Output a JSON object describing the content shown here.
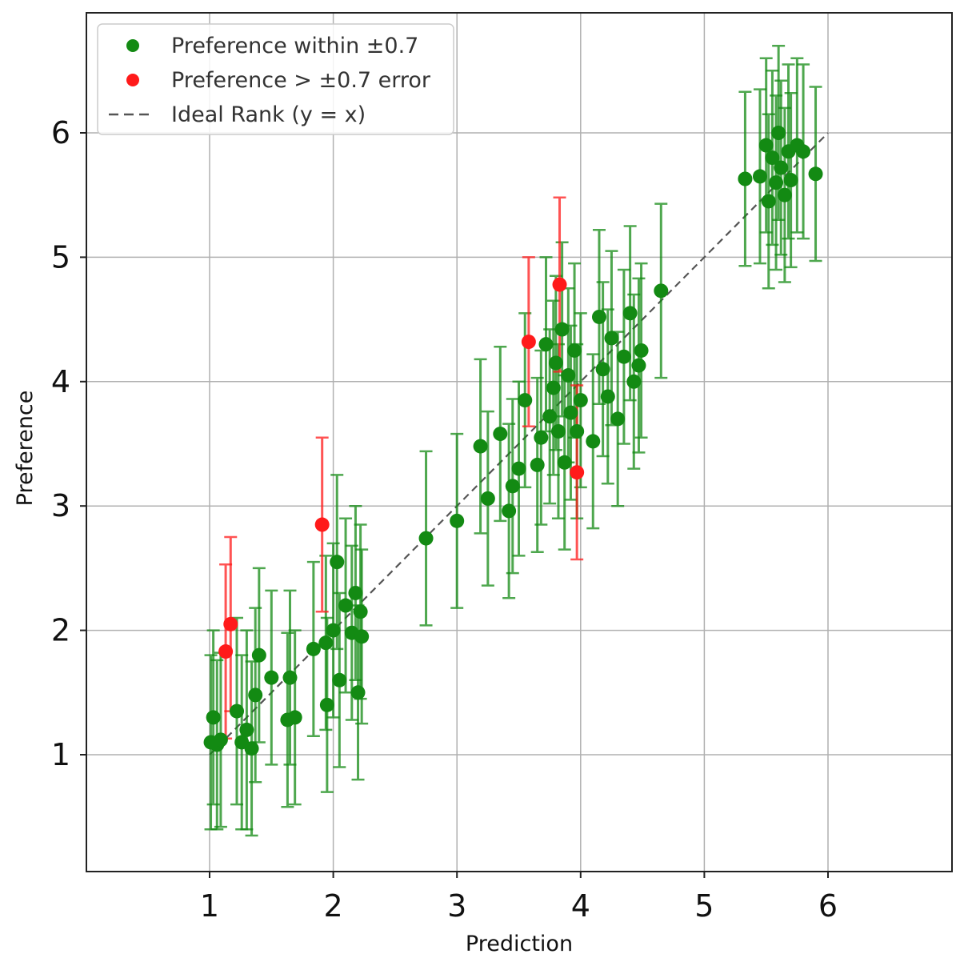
{
  "chart_data": {
    "type": "scatter",
    "title": "",
    "xlabel": "Prediction",
    "ylabel": "Preference",
    "xlim": [
      0,
      7
    ],
    "ylim": [
      0.25,
      7.0
    ],
    "xticks": [
      "1",
      "2",
      "3",
      "4",
      "5",
      "6"
    ],
    "yticks": [
      "1",
      "2",
      "3",
      "4",
      "5",
      "6"
    ],
    "xtick_values": [
      1,
      2,
      3,
      4,
      5,
      6
    ],
    "ytick_values": [
      1,
      2,
      3,
      4,
      5,
      6
    ],
    "grid": true,
    "legend_position": "top-left",
    "series": [
      {
        "name": "Preference within ±0.7",
        "color": "#138a13",
        "marker": "circle",
        "points": [
          [
            1.01,
            1.1,
            0.7
          ],
          [
            1.03,
            1.3,
            0.7
          ],
          [
            1.06,
            1.08,
            0.68
          ],
          [
            1.09,
            1.12,
            0.7
          ],
          [
            1.22,
            1.35,
            0.75
          ],
          [
            1.26,
            1.1,
            0.7
          ],
          [
            1.3,
            1.2,
            0.8
          ],
          [
            1.34,
            1.05,
            0.7
          ],
          [
            1.37,
            1.48,
            0.7
          ],
          [
            1.4,
            1.8,
            0.7
          ],
          [
            1.5,
            1.62,
            0.7
          ],
          [
            1.63,
            1.28,
            0.7
          ],
          [
            1.65,
            1.62,
            0.7
          ],
          [
            1.69,
            1.3,
            0.7
          ],
          [
            1.84,
            1.85,
            0.7
          ],
          [
            1.94,
            1.9,
            0.7
          ],
          [
            1.95,
            1.4,
            0.7
          ],
          [
            2.0,
            2.0,
            0.7
          ],
          [
            2.03,
            2.55,
            0.7
          ],
          [
            2.05,
            1.6,
            0.7
          ],
          [
            2.1,
            2.2,
            0.7
          ],
          [
            2.15,
            1.98,
            0.7
          ],
          [
            2.18,
            2.3,
            0.7
          ],
          [
            2.2,
            1.5,
            0.7
          ],
          [
            2.22,
            2.15,
            0.7
          ],
          [
            2.23,
            1.95,
            0.7
          ],
          [
            2.75,
            2.74,
            0.7
          ],
          [
            3.0,
            2.88,
            0.7
          ],
          [
            3.19,
            3.48,
            0.7
          ],
          [
            3.25,
            3.06,
            0.7
          ],
          [
            3.35,
            3.58,
            0.7
          ],
          [
            3.42,
            2.96,
            0.7
          ],
          [
            3.45,
            3.16,
            0.7
          ],
          [
            3.5,
            3.3,
            0.7
          ],
          [
            3.55,
            3.85,
            0.7
          ],
          [
            3.65,
            3.33,
            0.7
          ],
          [
            3.68,
            3.55,
            0.7
          ],
          [
            3.72,
            4.3,
            0.7
          ],
          [
            3.75,
            3.72,
            0.7
          ],
          [
            3.78,
            3.95,
            0.7
          ],
          [
            3.8,
            4.15,
            0.7
          ],
          [
            3.82,
            3.6,
            0.7
          ],
          [
            3.85,
            4.42,
            0.7
          ],
          [
            3.87,
            3.35,
            0.7
          ],
          [
            3.9,
            4.05,
            0.7
          ],
          [
            3.92,
            3.75,
            0.7
          ],
          [
            3.95,
            4.25,
            0.7
          ],
          [
            3.97,
            3.6,
            0.7
          ],
          [
            4.0,
            3.85,
            0.7
          ],
          [
            4.1,
            3.52,
            0.7
          ],
          [
            4.15,
            4.52,
            0.7
          ],
          [
            4.18,
            4.1,
            0.7
          ],
          [
            4.22,
            3.88,
            0.7
          ],
          [
            4.25,
            4.35,
            0.7
          ],
          [
            4.3,
            3.7,
            0.7
          ],
          [
            4.35,
            4.2,
            0.7
          ],
          [
            4.4,
            4.55,
            0.7
          ],
          [
            4.43,
            4.0,
            0.7
          ],
          [
            4.47,
            4.13,
            0.7
          ],
          [
            4.49,
            4.25,
            0.7
          ],
          [
            4.65,
            4.73,
            0.7
          ],
          [
            5.33,
            5.63,
            0.7
          ],
          [
            5.45,
            5.65,
            0.7
          ],
          [
            5.5,
            5.9,
            0.7
          ],
          [
            5.52,
            5.45,
            0.7
          ],
          [
            5.55,
            5.8,
            0.7
          ],
          [
            5.58,
            5.6,
            0.7
          ],
          [
            5.6,
            6.0,
            0.7
          ],
          [
            5.62,
            5.72,
            0.7
          ],
          [
            5.65,
            5.5,
            0.7
          ],
          [
            5.68,
            5.85,
            0.7
          ],
          [
            5.7,
            5.62,
            0.7
          ],
          [
            5.75,
            5.9,
            0.7
          ],
          [
            5.8,
            5.85,
            0.7
          ],
          [
            5.9,
            5.67,
            0.7
          ]
        ]
      },
      {
        "name": "Preference > ±0.7 error",
        "color": "#ff1a1a",
        "marker": "circle",
        "points": [
          [
            1.13,
            1.83,
            0.7
          ],
          [
            1.17,
            2.05,
            0.7
          ],
          [
            1.91,
            2.85,
            0.7
          ],
          [
            3.58,
            4.32,
            0.68
          ],
          [
            3.83,
            4.78,
            0.7
          ],
          [
            3.97,
            3.27,
            0.7
          ]
        ]
      }
    ],
    "reference_line": {
      "name": "Ideal Rank (y = x)",
      "x": [
        1,
        6
      ],
      "y": [
        1,
        6
      ],
      "style": "dashed",
      "color": "#555555"
    }
  }
}
